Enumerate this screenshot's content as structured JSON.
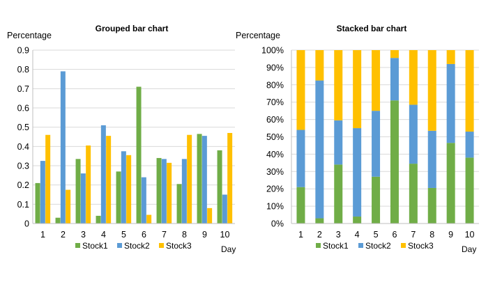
{
  "chart_data": [
    {
      "type": "bar",
      "title": "Grouped bar chart",
      "ylabel": "Percentage",
      "xlabel": "Day",
      "ylim": [
        0,
        0.9
      ],
      "yticks": [
        "0",
        "0.1",
        "0.2",
        "0.3",
        "0.4",
        "0.5",
        "0.6",
        "0.7",
        "0.8",
        "0.9"
      ],
      "categories": [
        "1",
        "2",
        "3",
        "4",
        "5",
        "6",
        "7",
        "8",
        "9",
        "10"
      ],
      "series": [
        {
          "name": "Stock1",
          "color": "#70ad47",
          "values": [
            0.21,
            0.03,
            0.335,
            0.04,
            0.27,
            0.71,
            0.34,
            0.205,
            0.465,
            0.38
          ]
        },
        {
          "name": "Stock2",
          "color": "#5b9bd5",
          "values": [
            0.325,
            0.79,
            0.26,
            0.51,
            0.375,
            0.24,
            0.335,
            0.335,
            0.455,
            0.15
          ]
        },
        {
          "name": "Stock3",
          "color": "#ffc000",
          "values": [
            0.46,
            0.175,
            0.405,
            0.455,
            0.355,
            0.045,
            0.315,
            0.46,
            0.08,
            0.47
          ]
        }
      ],
      "grid": true,
      "legend_position": "bottom"
    },
    {
      "type": "bar",
      "stacked": true,
      "title": "Stacked bar chart",
      "ylabel": "Percentage",
      "xlabel": "Day",
      "ylim": [
        0,
        100
      ],
      "yticks": [
        "0%",
        "10%",
        "20%",
        "30%",
        "40%",
        "50%",
        "60%",
        "70%",
        "80%",
        "90%",
        "100%"
      ],
      "categories": [
        "1",
        "2",
        "3",
        "4",
        "5",
        "6",
        "7",
        "8",
        "9",
        "10"
      ],
      "series": [
        {
          "name": "Stock1",
          "color": "#70ad47",
          "values": [
            21,
            3,
            34,
            4,
            27,
            71,
            34.5,
            20.5,
            46.5,
            38
          ]
        },
        {
          "name": "Stock2",
          "color": "#5b9bd5",
          "values": [
            33,
            79.5,
            25.5,
            51,
            38,
            24.5,
            34,
            33,
            45.5,
            15
          ]
        },
        {
          "name": "Stock3",
          "color": "#ffc000",
          "values": [
            46,
            17.5,
            40.5,
            45,
            35,
            4.5,
            31.5,
            46.5,
            8,
            47
          ]
        }
      ],
      "grid": true,
      "legend_position": "bottom"
    }
  ]
}
